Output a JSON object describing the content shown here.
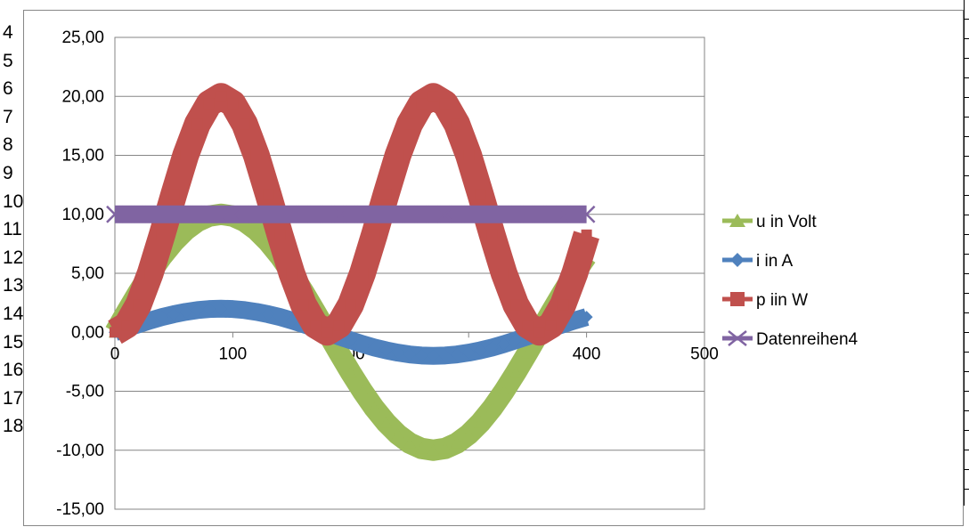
{
  "sheet": {
    "row_labels": [
      "4",
      "5",
      "6",
      "7",
      "8",
      "9",
      "10",
      "11",
      "12",
      "13",
      "14",
      "15",
      "16",
      "17",
      "18"
    ]
  },
  "chart_data": {
    "type": "line",
    "title": "",
    "xlabel": "",
    "ylabel": "",
    "xlim": [
      0,
      500
    ],
    "ylim": [
      -15,
      25
    ],
    "x_ticks": [
      "0",
      "100",
      "200",
      "300",
      "400",
      "500"
    ],
    "y_ticks": [
      "25,00",
      "20,00",
      "15,00",
      "10,00",
      "5,00",
      "0,00",
      "-5,00",
      "-10,00",
      "-15,00"
    ],
    "grid": true,
    "legend_position": "right",
    "x": [
      0,
      10,
      20,
      30,
      40,
      50,
      60,
      70,
      80,
      90,
      100,
      110,
      120,
      130,
      140,
      150,
      160,
      170,
      180,
      190,
      200,
      210,
      220,
      230,
      240,
      250,
      260,
      270,
      280,
      290,
      300,
      310,
      320,
      330,
      340,
      350,
      360,
      370,
      380,
      390,
      400
    ],
    "series": [
      {
        "name": "u in Volt",
        "color": "#9bbb59",
        "marker": "triangle",
        "values": [
          0.0,
          1.74,
          3.42,
          5.0,
          6.43,
          7.66,
          8.66,
          9.4,
          9.85,
          10.0,
          9.85,
          9.4,
          8.66,
          7.66,
          6.43,
          5.0,
          3.42,
          1.74,
          0.0,
          -1.74,
          -3.42,
          -5.0,
          -6.43,
          -7.66,
          -8.66,
          -9.4,
          -9.85,
          -10.0,
          -9.85,
          -9.4,
          -8.66,
          -7.66,
          -6.43,
          -5.0,
          -3.42,
          -1.74,
          0.0,
          1.74,
          3.42,
          5.0,
          6.43
        ]
      },
      {
        "name": "i in A",
        "color": "#4f81bd",
        "marker": "diamond",
        "values": [
          0.0,
          0.35,
          0.68,
          1.0,
          1.29,
          1.53,
          1.73,
          1.88,
          1.97,
          2.0,
          1.97,
          1.88,
          1.73,
          1.53,
          1.29,
          1.0,
          0.68,
          0.35,
          0.0,
          -0.35,
          -0.68,
          -1.0,
          -1.29,
          -1.53,
          -1.73,
          -1.88,
          -1.97,
          -2.0,
          -1.97,
          -1.88,
          -1.73,
          -1.53,
          -1.29,
          -1.0,
          -0.68,
          -0.35,
          0.0,
          0.35,
          0.68,
          1.0,
          1.29
        ]
      },
      {
        "name": "p iin W",
        "color": "#c0504d",
        "marker": "square",
        "values": [
          0.0,
          0.6,
          2.34,
          5.0,
          8.26,
          11.7,
          15.0,
          17.66,
          19.4,
          20.0,
          19.4,
          17.66,
          15.0,
          11.7,
          8.26,
          5.0,
          2.34,
          0.6,
          0.0,
          0.6,
          2.34,
          5.0,
          8.26,
          11.7,
          15.0,
          17.66,
          19.4,
          20.0,
          19.4,
          17.66,
          15.0,
          11.7,
          8.26,
          5.0,
          2.34,
          0.6,
          0.0,
          0.6,
          2.34,
          5.0,
          8.26
        ]
      },
      {
        "name": "Datenreihen4",
        "color": "#8064a2",
        "marker": "x",
        "values": [
          10,
          10,
          10,
          10,
          10,
          10,
          10,
          10,
          10,
          10,
          10,
          10,
          10,
          10,
          10,
          10,
          10,
          10,
          10,
          10,
          10,
          10,
          10,
          10,
          10,
          10,
          10,
          10,
          10,
          10,
          10,
          10,
          10,
          10,
          10,
          10,
          10,
          10,
          10,
          10,
          10
        ]
      }
    ]
  }
}
